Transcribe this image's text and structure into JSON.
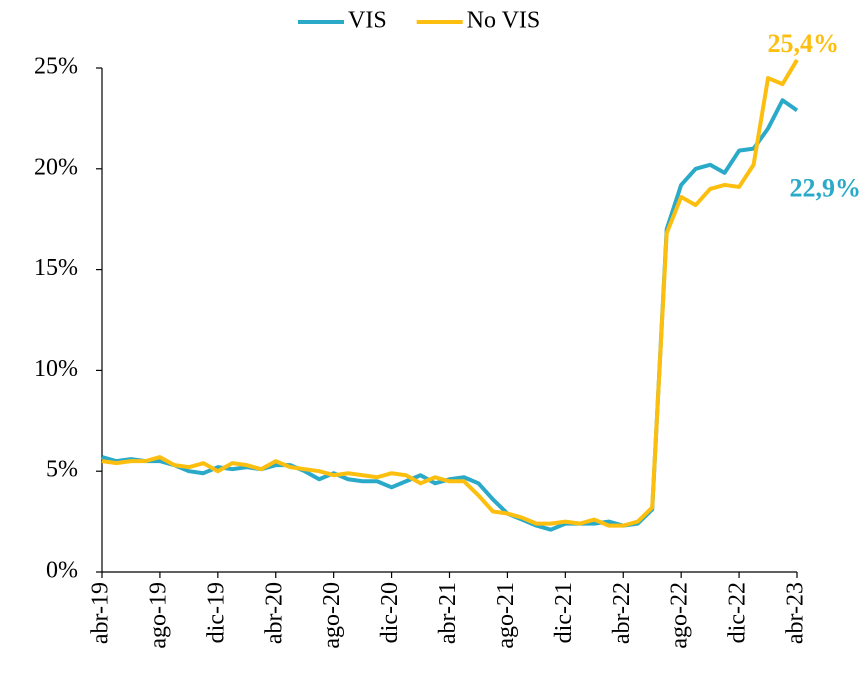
{
  "chart_data": {
    "type": "line",
    "categories": [
      "abr-19",
      null,
      null,
      null,
      "ago-19",
      null,
      null,
      null,
      "dic-19",
      null,
      null,
      null,
      "abr-20",
      null,
      null,
      null,
      "ago-20",
      null,
      null,
      null,
      "dic-20",
      null,
      null,
      null,
      "abr-21",
      null,
      null,
      null,
      "ago-21",
      null,
      null,
      null,
      "dic-21",
      null,
      null,
      null,
      "abr-22",
      null,
      null,
      null,
      "ago-22",
      null,
      null,
      null,
      "dic-22",
      null,
      null,
      null,
      "abr-23"
    ],
    "series": [
      {
        "name": "VIS",
        "color": "#2aa9c9",
        "values": [
          5.7,
          5.5,
          5.6,
          5.5,
          5.5,
          5.3,
          5.0,
          4.9,
          5.2,
          5.1,
          5.2,
          5.1,
          5.3,
          5.3,
          5.0,
          4.6,
          4.9,
          4.6,
          4.5,
          4.5,
          4.2,
          4.5,
          4.8,
          4.4,
          4.6,
          4.7,
          4.4,
          3.6,
          2.9,
          2.6,
          2.3,
          2.1,
          2.4,
          2.4,
          2.4,
          2.5,
          2.3,
          2.4,
          3.1,
          17.0,
          19.2,
          20.0,
          20.2,
          19.8,
          20.9,
          21.0,
          22.0,
          23.4,
          22.9
        ],
        "value_labels": [
          null,
          null,
          null,
          null,
          null,
          null,
          null,
          null,
          null,
          null,
          null,
          null,
          null,
          null,
          null,
          null,
          null,
          null,
          null,
          null,
          null,
          null,
          null,
          null,
          null,
          null,
          null,
          null,
          null,
          null,
          null,
          null,
          null,
          null,
          null,
          null,
          null,
          null,
          null,
          null,
          null,
          null,
          null,
          null,
          null,
          null,
          null,
          null,
          "22,9%"
        ]
      },
      {
        "name": "No VIS",
        "color": "#fdbf0f",
        "values": [
          5.5,
          5.4,
          5.5,
          5.5,
          5.7,
          5.3,
          5.2,
          5.4,
          5.0,
          5.4,
          5.3,
          5.1,
          5.5,
          5.2,
          5.1,
          5.0,
          4.8,
          4.9,
          4.8,
          4.7,
          4.9,
          4.8,
          4.4,
          4.7,
          4.5,
          4.5,
          3.8,
          3.0,
          2.9,
          2.7,
          2.4,
          2.4,
          2.5,
          2.4,
          2.6,
          2.3,
          2.3,
          2.5,
          3.2,
          16.8,
          18.6,
          18.2,
          19.0,
          19.2,
          19.1,
          20.2,
          24.5,
          24.2,
          25.4
        ],
        "value_labels": [
          null,
          null,
          null,
          null,
          null,
          null,
          null,
          null,
          null,
          null,
          null,
          null,
          null,
          null,
          null,
          null,
          null,
          null,
          null,
          null,
          null,
          null,
          null,
          null,
          null,
          null,
          null,
          null,
          null,
          null,
          null,
          null,
          null,
          null,
          null,
          null,
          null,
          null,
          null,
          null,
          null,
          null,
          null,
          null,
          null,
          null,
          null,
          null,
          "25,4%"
        ]
      }
    ],
    "ylim": [
      0,
      25
    ],
    "yticks": [
      {
        "value": 0,
        "label": "0%"
      },
      {
        "value": 5,
        "label": "5%"
      },
      {
        "value": 10,
        "label": "10%"
      },
      {
        "value": 15,
        "label": "15%"
      },
      {
        "value": 20,
        "label": "20%"
      },
      {
        "value": 25,
        "label": "25%"
      }
    ],
    "legend": "top"
  }
}
